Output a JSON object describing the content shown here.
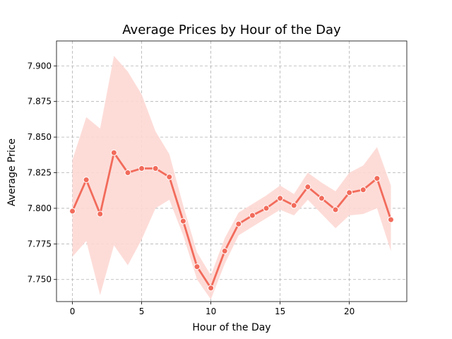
{
  "chart_data": {
    "type": "line",
    "title": "Average Prices by Hour of the Day",
    "xlabel": "Hour of the Day",
    "ylabel": "Average Price",
    "xlim": [
      -1.15,
      24.15
    ],
    "ylim": [
      7.7345,
      7.9175
    ],
    "x_ticks": [
      0,
      5,
      10,
      15,
      20
    ],
    "x_tick_labels": [
      "0",
      "5",
      "10",
      "15",
      "20"
    ],
    "y_ticks": [
      7.75,
      7.775,
      7.8,
      7.825,
      7.85,
      7.875,
      7.9
    ],
    "y_tick_labels": [
      "7.750",
      "7.775",
      "7.800",
      "7.825",
      "7.850",
      "7.875",
      "7.900"
    ],
    "grid": true,
    "x": [
      0,
      1,
      2,
      3,
      4,
      5,
      6,
      7,
      8,
      9,
      10,
      11,
      12,
      13,
      14,
      15,
      16,
      17,
      18,
      19,
      20,
      21,
      22,
      23
    ],
    "series": [
      {
        "values": [
          7.798,
          7.82,
          7.796,
          7.839,
          7.825,
          7.828,
          7.828,
          7.822,
          7.791,
          7.759,
          7.744,
          7.77,
          7.789,
          7.795,
          7.8,
          7.807,
          7.802,
          7.815,
          7.807,
          7.799,
          7.811,
          7.813,
          7.821,
          7.792
        ],
        "ci_lower": [
          7.766,
          7.777,
          7.739,
          7.774,
          7.76,
          7.778,
          7.8,
          7.806,
          7.781,
          7.75,
          7.736,
          7.761,
          7.781,
          7.787,
          7.793,
          7.799,
          7.795,
          7.806,
          7.796,
          7.786,
          7.795,
          7.796,
          7.8,
          7.77
        ],
        "ci_upper": [
          7.834,
          7.864,
          7.856,
          7.907,
          7.896,
          7.88,
          7.854,
          7.838,
          7.802,
          7.769,
          7.753,
          7.779,
          7.797,
          7.803,
          7.809,
          7.816,
          7.81,
          7.825,
          7.818,
          7.812,
          7.825,
          7.83,
          7.843,
          7.816
        ],
        "color": "#f26b5b",
        "band_color": "#fdd8d4"
      }
    ]
  }
}
